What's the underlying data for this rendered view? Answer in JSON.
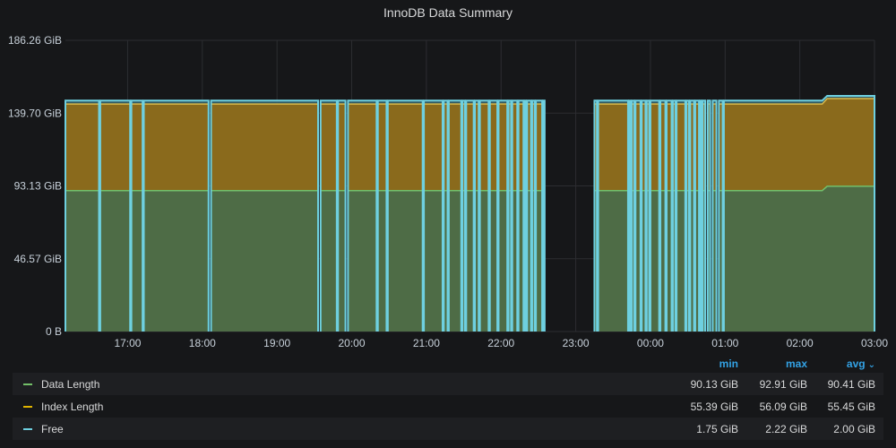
{
  "panel": {
    "title": "InnoDB Data Summary"
  },
  "chart_data": {
    "type": "area",
    "stacked": true,
    "title": "InnoDB Data Summary",
    "y_ticks": [
      "0 B",
      "46.57 GiB",
      "93.13 GiB",
      "139.70 GiB",
      "186.26 GiB"
    ],
    "ylim": [
      0,
      186.26
    ],
    "x_ticks": [
      "17:00",
      "18:00",
      "19:00",
      "20:00",
      "21:00",
      "22:00",
      "23:00",
      "00:00",
      "01:00",
      "02:00",
      "03:00"
    ],
    "x_range": [
      "16:10",
      "03:00"
    ],
    "grid": true,
    "legend_position": "bottom",
    "series": [
      {
        "name": "Data Length",
        "color": "#73bf69",
        "fill": "#4e6c46",
        "before_step": 90.13,
        "after_step": 92.91,
        "step_time": "02:18"
      },
      {
        "name": "Index Length",
        "color": "#e0b400",
        "fill": "#8a6a1c",
        "before_step": 55.39,
        "after_step": 56.09,
        "step_time": "02:18"
      },
      {
        "name": "Free",
        "color": "#8ab8ff",
        "line_color": "#6ed0e0",
        "before_step": 2.22,
        "after_step": 1.75,
        "step_time": "02:18"
      }
    ],
    "gaps": [
      [
        "16:37",
        "16:38"
      ],
      [
        "17:02",
        "17:03"
      ],
      [
        "17:12",
        "17:13"
      ],
      [
        "18:05",
        "18:07"
      ],
      [
        "19:33",
        "19:35"
      ],
      [
        "19:48",
        "19:49"
      ],
      [
        "19:55",
        "19:57"
      ],
      [
        "20:20",
        "20:21"
      ],
      [
        "20:28",
        "20:29"
      ],
      [
        "20:57",
        "20:58"
      ],
      [
        "21:13",
        "21:14"
      ],
      [
        "21:17",
        "21:18"
      ],
      [
        "21:28",
        "21:29"
      ],
      [
        "21:31",
        "21:32"
      ],
      [
        "21:38",
        "21:39"
      ],
      [
        "21:42",
        "21:43"
      ],
      [
        "21:50",
        "21:51"
      ],
      [
        "21:57",
        "21:58"
      ],
      [
        "22:05",
        "22:06"
      ],
      [
        "22:08",
        "22:09"
      ],
      [
        "22:13",
        "22:14"
      ],
      [
        "22:18",
        "22:19"
      ],
      [
        "22:20",
        "22:21"
      ],
      [
        "22:24",
        "22:25"
      ],
      [
        "22:27",
        "22:28"
      ],
      [
        "22:33",
        "22:34"
      ],
      [
        "22:35",
        "23:15"
      ],
      [
        "23:17",
        "23:18"
      ],
      [
        "23:42",
        "23:43"
      ],
      [
        "23:44",
        "23:45"
      ],
      [
        "23:47",
        "23:48"
      ],
      [
        "23:52",
        "23:53"
      ],
      [
        "23:56",
        "23:57"
      ],
      [
        "23:59",
        "00:00"
      ],
      [
        "00:07",
        "00:08"
      ],
      [
        "00:12",
        "00:13"
      ],
      [
        "00:17",
        "00:18"
      ],
      [
        "00:20",
        "00:21"
      ],
      [
        "00:28",
        "00:29"
      ],
      [
        "00:31",
        "00:32"
      ],
      [
        "00:35",
        "00:36"
      ],
      [
        "00:39",
        "00:40"
      ],
      [
        "00:41",
        "00:42"
      ],
      [
        "00:44",
        "00:46"
      ],
      [
        "00:48",
        "00:50"
      ],
      [
        "00:53",
        "00:55"
      ],
      [
        "00:58",
        "00:59"
      ]
    ]
  },
  "legend": {
    "headers": {
      "min": "min",
      "max": "max",
      "avg": "avg"
    },
    "rows": [
      {
        "name": "Data Length",
        "color": "#73bf69",
        "min": "90.13 GiB",
        "max": "92.91 GiB",
        "avg": "90.41 GiB"
      },
      {
        "name": "Index Length",
        "color": "#e0b400",
        "min": "55.39 GiB",
        "max": "56.09 GiB",
        "avg": "55.45 GiB"
      },
      {
        "name": "Free",
        "color": "#6ed0e0",
        "min": "1.75 GiB",
        "max": "2.22 GiB",
        "avg": "2.00 GiB"
      }
    ]
  }
}
